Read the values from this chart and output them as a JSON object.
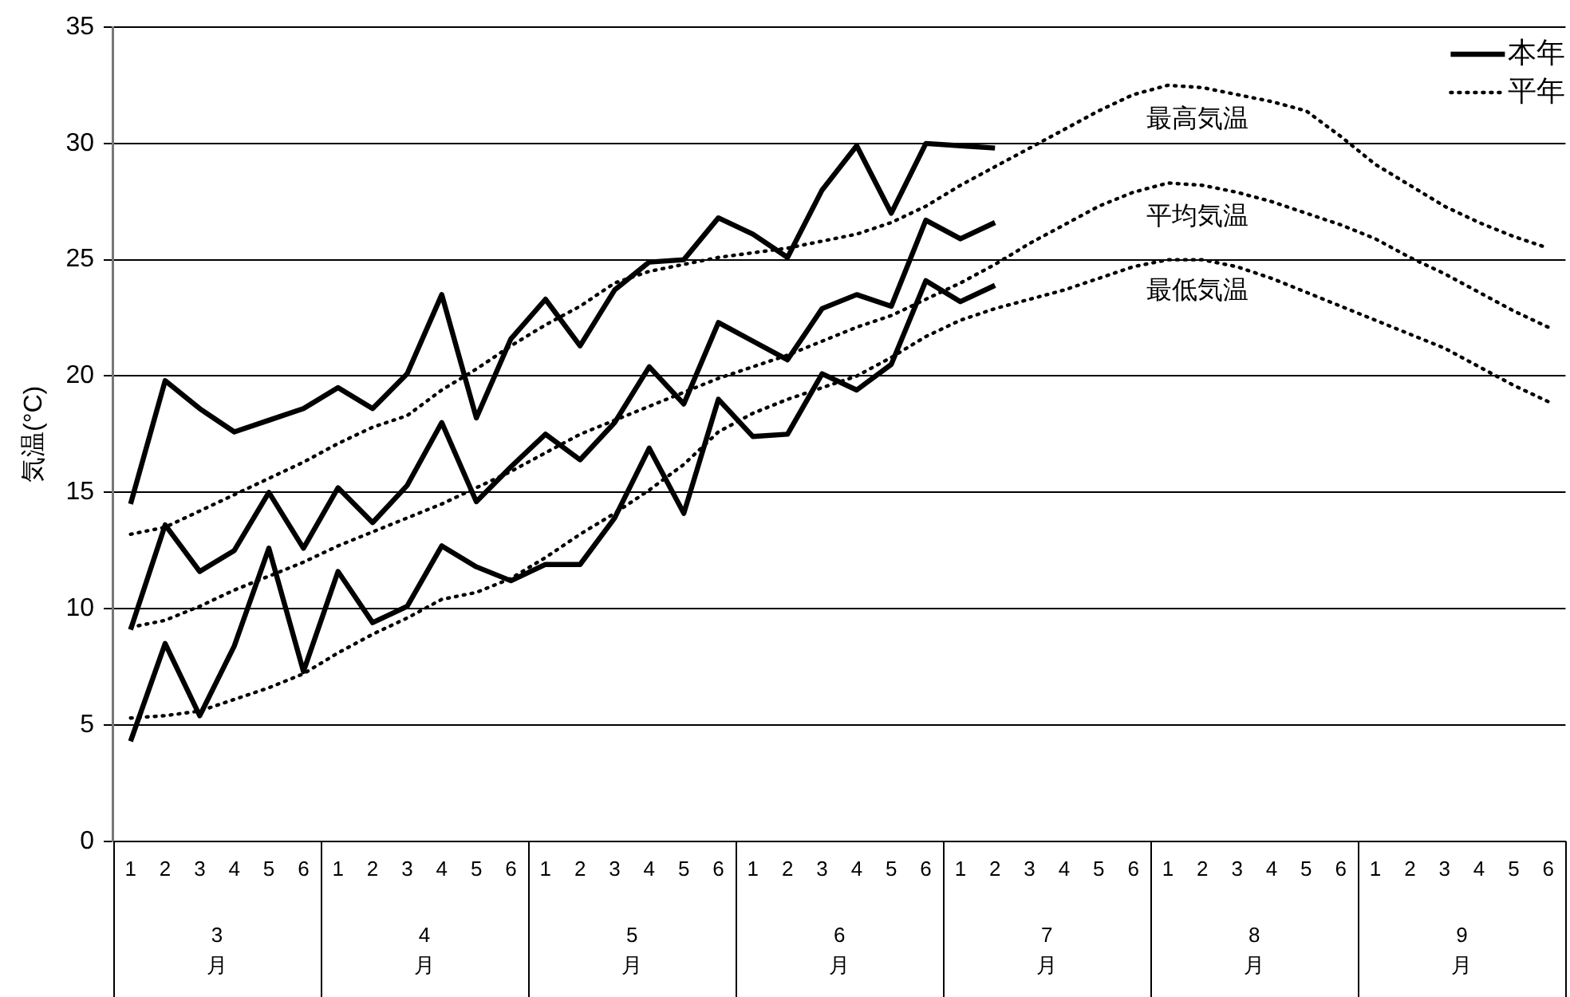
{
  "chart_data": {
    "type": "line",
    "ylabel": "気温(°C)",
    "categories": [
      "1",
      "2",
      "3",
      "4",
      "5",
      "6",
      "1",
      "2",
      "3",
      "4",
      "5",
      "6",
      "1",
      "2",
      "3",
      "4",
      "5",
      "6",
      "1",
      "2",
      "3",
      "4",
      "5",
      "6",
      "1",
      "2",
      "3",
      "4",
      "5",
      "6",
      "1",
      "2",
      "3",
      "4",
      "5",
      "6",
      "1",
      "2",
      "3",
      "4",
      "5",
      "6"
    ],
    "series": [
      {
        "name": "本年",
        "color": "#000000",
        "line_style": "solid",
        "values": [
          14.5,
          19.8,
          18.6,
          17.6,
          18.1,
          18.6,
          19.5,
          18.6,
          20.1,
          23.5,
          18.2,
          21.6,
          23.3,
          21.3,
          23.7,
          24.9,
          25.0,
          26.8,
          26.1,
          25.1,
          28.0,
          29.9,
          27.0,
          30.0,
          29.9,
          29.8,
          null,
          null,
          null,
          null,
          null,
          null,
          null,
          null,
          null,
          null,
          null,
          null,
          null,
          null,
          null,
          null
        ]
      },
      {
        "color": "#000000",
        "line_style": "solid",
        "values": [
          9.1,
          13.6,
          11.6,
          12.5,
          15.0,
          12.6,
          15.2,
          13.7,
          15.3,
          18.0,
          14.6,
          16.1,
          17.5,
          16.4,
          18.0,
          20.4,
          18.8,
          22.3,
          21.5,
          20.7,
          22.9,
          23.5,
          23.0,
          26.7,
          25.9,
          26.6,
          null,
          null,
          null,
          null,
          null,
          null,
          null,
          null,
          null,
          null,
          null,
          null,
          null,
          null,
          null,
          null
        ]
      },
      {
        "color": "#000000",
        "line_style": "solid",
        "values": [
          4.3,
          8.5,
          5.4,
          8.4,
          12.6,
          7.3,
          11.6,
          9.4,
          10.1,
          12.7,
          11.8,
          11.2,
          11.9,
          11.9,
          13.9,
          16.9,
          14.1,
          19.0,
          17.4,
          17.5,
          20.1,
          19.4,
          20.5,
          24.1,
          23.2,
          23.9,
          null,
          null,
          null,
          null,
          null,
          null,
          null,
          null,
          null,
          null,
          null,
          null,
          null,
          null,
          null,
          null
        ]
      },
      {
        "name": "平年",
        "color": "#000000",
        "line_style": "dotted",
        "values": [
          13.2,
          13.5,
          14.2,
          14.9,
          15.6,
          16.3,
          17.1,
          17.8,
          18.3,
          19.4,
          20.3,
          21.3,
          22.2,
          23.0,
          24.0,
          24.5,
          24.8,
          25.1,
          25.3,
          25.5,
          25.8,
          26.1,
          26.6,
          27.3,
          28.2,
          29.0,
          29.8,
          30.6,
          31.4,
          32.1,
          32.5,
          32.4,
          32.1,
          31.8,
          31.4,
          30.3,
          29.1,
          28.2,
          27.3,
          26.6,
          26.0,
          25.5
        ]
      },
      {
        "color": "#000000",
        "line_style": "dotted",
        "values": [
          9.2,
          9.5,
          10.1,
          10.8,
          11.4,
          12.0,
          12.7,
          13.3,
          13.9,
          14.5,
          15.2,
          15.9,
          16.7,
          17.5,
          18.1,
          18.7,
          19.3,
          19.9,
          20.4,
          20.9,
          21.5,
          22.1,
          22.6,
          23.3,
          24.0,
          24.8,
          25.7,
          26.5,
          27.3,
          27.9,
          28.3,
          28.2,
          27.9,
          27.5,
          27.0,
          26.5,
          25.9,
          25.1,
          24.4,
          23.6,
          22.8,
          22.1
        ]
      },
      {
        "color": "#000000",
        "line_style": "dotted",
        "values": [
          5.3,
          5.4,
          5.6,
          6.1,
          6.6,
          7.2,
          8.1,
          8.9,
          9.6,
          10.4,
          10.7,
          11.3,
          12.2,
          13.2,
          14.1,
          15.1,
          16.2,
          17.6,
          18.4,
          19.0,
          19.5,
          20.0,
          20.8,
          21.7,
          22.4,
          22.9,
          23.3,
          23.7,
          24.2,
          24.7,
          25.0,
          25.0,
          24.7,
          24.2,
          23.6,
          23.0,
          22.4,
          21.8,
          21.2,
          20.4,
          19.6,
          18.9
        ]
      }
    ],
    "annotations": [
      "最高気温",
      "平均気温",
      "最低気温",
      "3月",
      "4月",
      "5月",
      "6月",
      "7月",
      "8月",
      "9月"
    ],
    "ylim": [
      0,
      35
    ],
    "yticks": [
      0,
      5,
      10,
      15,
      20,
      25,
      30,
      35
    ],
    "grid": "y",
    "legend": "top right",
    "marker": "none"
  }
}
